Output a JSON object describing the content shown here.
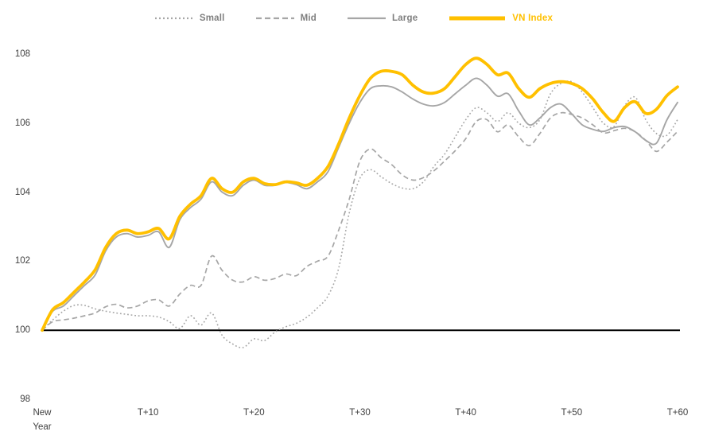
{
  "chart_data": {
    "type": "line",
    "title": "",
    "grid": false,
    "legend_position": "top",
    "baseline_value": 100,
    "x_axis": {
      "min": 0,
      "max": 60,
      "unit": "trading days after New Year",
      "tick_values": [
        0,
        10,
        20,
        30,
        40,
        50,
        60
      ],
      "tick_labels": [
        "New\nYear",
        "T+10",
        "T+20",
        "T+30",
        "T+40",
        "T+50",
        "T+60"
      ]
    },
    "y_axis": {
      "min": 98,
      "max": 108,
      "tick_values": [
        108,
        106,
        104,
        102,
        100,
        98
      ],
      "tick_labels": [
        "108",
        "106",
        "104",
        "102",
        "100",
        "98"
      ]
    },
    "series": [
      {
        "name": "Small",
        "color": "#a6a6a6",
        "label_color": "#7f7f7f",
        "style": "dotted",
        "width": 1.6,
        "values": [
          100,
          100.3,
          100.55,
          100.72,
          100.72,
          100.62,
          100.55,
          100.5,
          100.46,
          100.42,
          100.42,
          100.38,
          100.25,
          100.05,
          100.42,
          100.15,
          100.5,
          99.85,
          99.6,
          99.5,
          99.75,
          99.7,
          99.95,
          100.1,
          100.2,
          100.38,
          100.65,
          101,
          101.8,
          103.4,
          104.4,
          104.65,
          104.45,
          104.25,
          104.12,
          104.1,
          104.3,
          104.75,
          105.1,
          105.6,
          106.1,
          106.45,
          106.3,
          106.05,
          106.3,
          106,
          105.87,
          106.1,
          106.85,
          107.15,
          107.2,
          106.9,
          106.45,
          106,
          105.9,
          106.5,
          106.75,
          106.1,
          105.7,
          105.65,
          106.1
        ]
      },
      {
        "name": "Mid",
        "color": "#a6a6a6",
        "label_color": "#7f7f7f",
        "style": "dashed",
        "width": 1.7,
        "values": [
          100,
          100.25,
          100.3,
          100.35,
          100.42,
          100.5,
          100.68,
          100.75,
          100.65,
          100.7,
          100.85,
          100.88,
          100.7,
          101.05,
          101.3,
          101.3,
          102.15,
          101.73,
          101.45,
          101.4,
          101.55,
          101.45,
          101.5,
          101.63,
          101.58,
          101.85,
          102,
          102.15,
          102.9,
          103.8,
          104.9,
          105.25,
          105,
          104.8,
          104.5,
          104.35,
          104.42,
          104.62,
          104.9,
          105.2,
          105.55,
          106.05,
          106.1,
          105.75,
          105.95,
          105.6,
          105.35,
          105.7,
          106.15,
          106.3,
          106.25,
          106.15,
          105.95,
          105.72,
          105.78,
          105.85,
          105.75,
          105.5,
          105.18,
          105.45,
          105.76
        ]
      },
      {
        "name": "Large",
        "color": "#a6a6a6",
        "label_color": "#7f7f7f",
        "style": "solid",
        "width": 1.9,
        "values": [
          100,
          100.55,
          100.7,
          101,
          101.3,
          101.6,
          102.3,
          102.7,
          102.8,
          102.7,
          102.75,
          102.85,
          102.4,
          103.2,
          103.55,
          103.8,
          104.3,
          104,
          103.9,
          104.2,
          104.35,
          104.2,
          104.2,
          104.28,
          104.22,
          104.1,
          104.3,
          104.6,
          105.3,
          106,
          106.6,
          107,
          107.08,
          107.05,
          106.9,
          106.7,
          106.55,
          106.5,
          106.6,
          106.85,
          107.1,
          107.3,
          107.1,
          106.78,
          106.85,
          106.35,
          105.95,
          106.15,
          106.45,
          106.55,
          106.27,
          105.95,
          105.82,
          105.76,
          105.87,
          105.9,
          105.75,
          105.5,
          105.42,
          106.1,
          106.6
        ]
      },
      {
        "name": "VN Index",
        "color": "#ffc000",
        "label_color": "#ffc000",
        "style": "solid",
        "width": 3.8,
        "values": [
          100,
          100.6,
          100.8,
          101.1,
          101.4,
          101.75,
          102.4,
          102.8,
          102.9,
          102.8,
          102.85,
          102.95,
          102.65,
          103.3,
          103.65,
          103.9,
          104.4,
          104.1,
          104,
          104.3,
          104.4,
          104.25,
          104.22,
          104.3,
          104.27,
          104.2,
          104.4,
          104.75,
          105.4,
          106.15,
          106.8,
          107.3,
          107.5,
          107.5,
          107.4,
          107.1,
          106.9,
          106.87,
          107,
          107.35,
          107.7,
          107.88,
          107.7,
          107.4,
          107.45,
          107,
          106.75,
          107,
          107.15,
          107.2,
          107.15,
          107,
          106.7,
          106.3,
          106.05,
          106.45,
          106.62,
          106.28,
          106.4,
          106.8,
          107.05
        ]
      }
    ]
  },
  "colors": {
    "background": "#ffffff",
    "baseline": "#000000",
    "axis_text": "#404040",
    "legend_text": "#7f7f7f",
    "accent_gold": "#ffc000",
    "line_gray": "#a6a6a6"
  }
}
